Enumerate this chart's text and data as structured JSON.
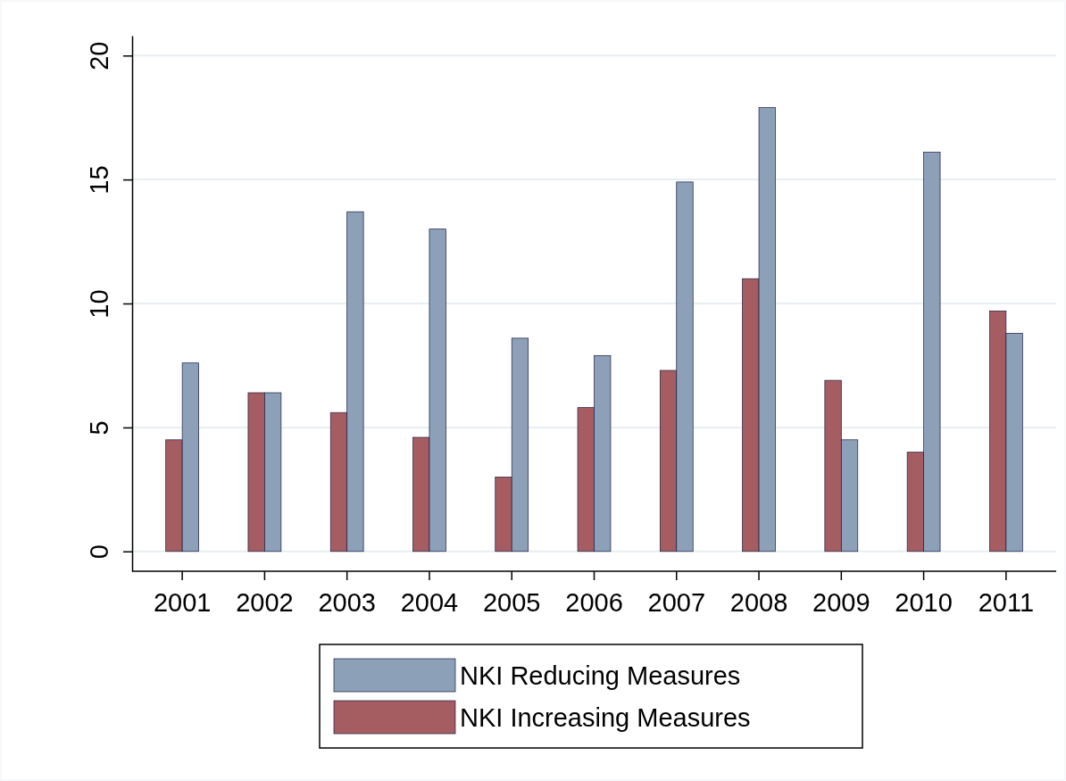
{
  "chart_data": {
    "type": "bar",
    "categories": [
      "2001",
      "2002",
      "2003",
      "2004",
      "2005",
      "2006",
      "2007",
      "2008",
      "2009",
      "2010",
      "2011"
    ],
    "series": [
      {
        "name": "NKI Increasing Measures",
        "color": "#a65d61",
        "values": [
          4.5,
          6.4,
          5.6,
          4.6,
          3,
          5.8,
          7.3,
          11,
          6.9,
          4,
          9.7
        ]
      },
      {
        "name": "NKI Reducing Measures",
        "color": "#8ca1b8",
        "values": [
          7.6,
          6.4,
          13.7,
          13,
          8.6,
          7.9,
          14.9,
          17.9,
          4.5,
          16.1,
          8.8
        ]
      }
    ],
    "ylim": [
      -0.8,
      20.8
    ],
    "yticks": [
      0,
      5,
      10,
      15,
      20
    ],
    "grid": "y",
    "legend": "bottom"
  }
}
